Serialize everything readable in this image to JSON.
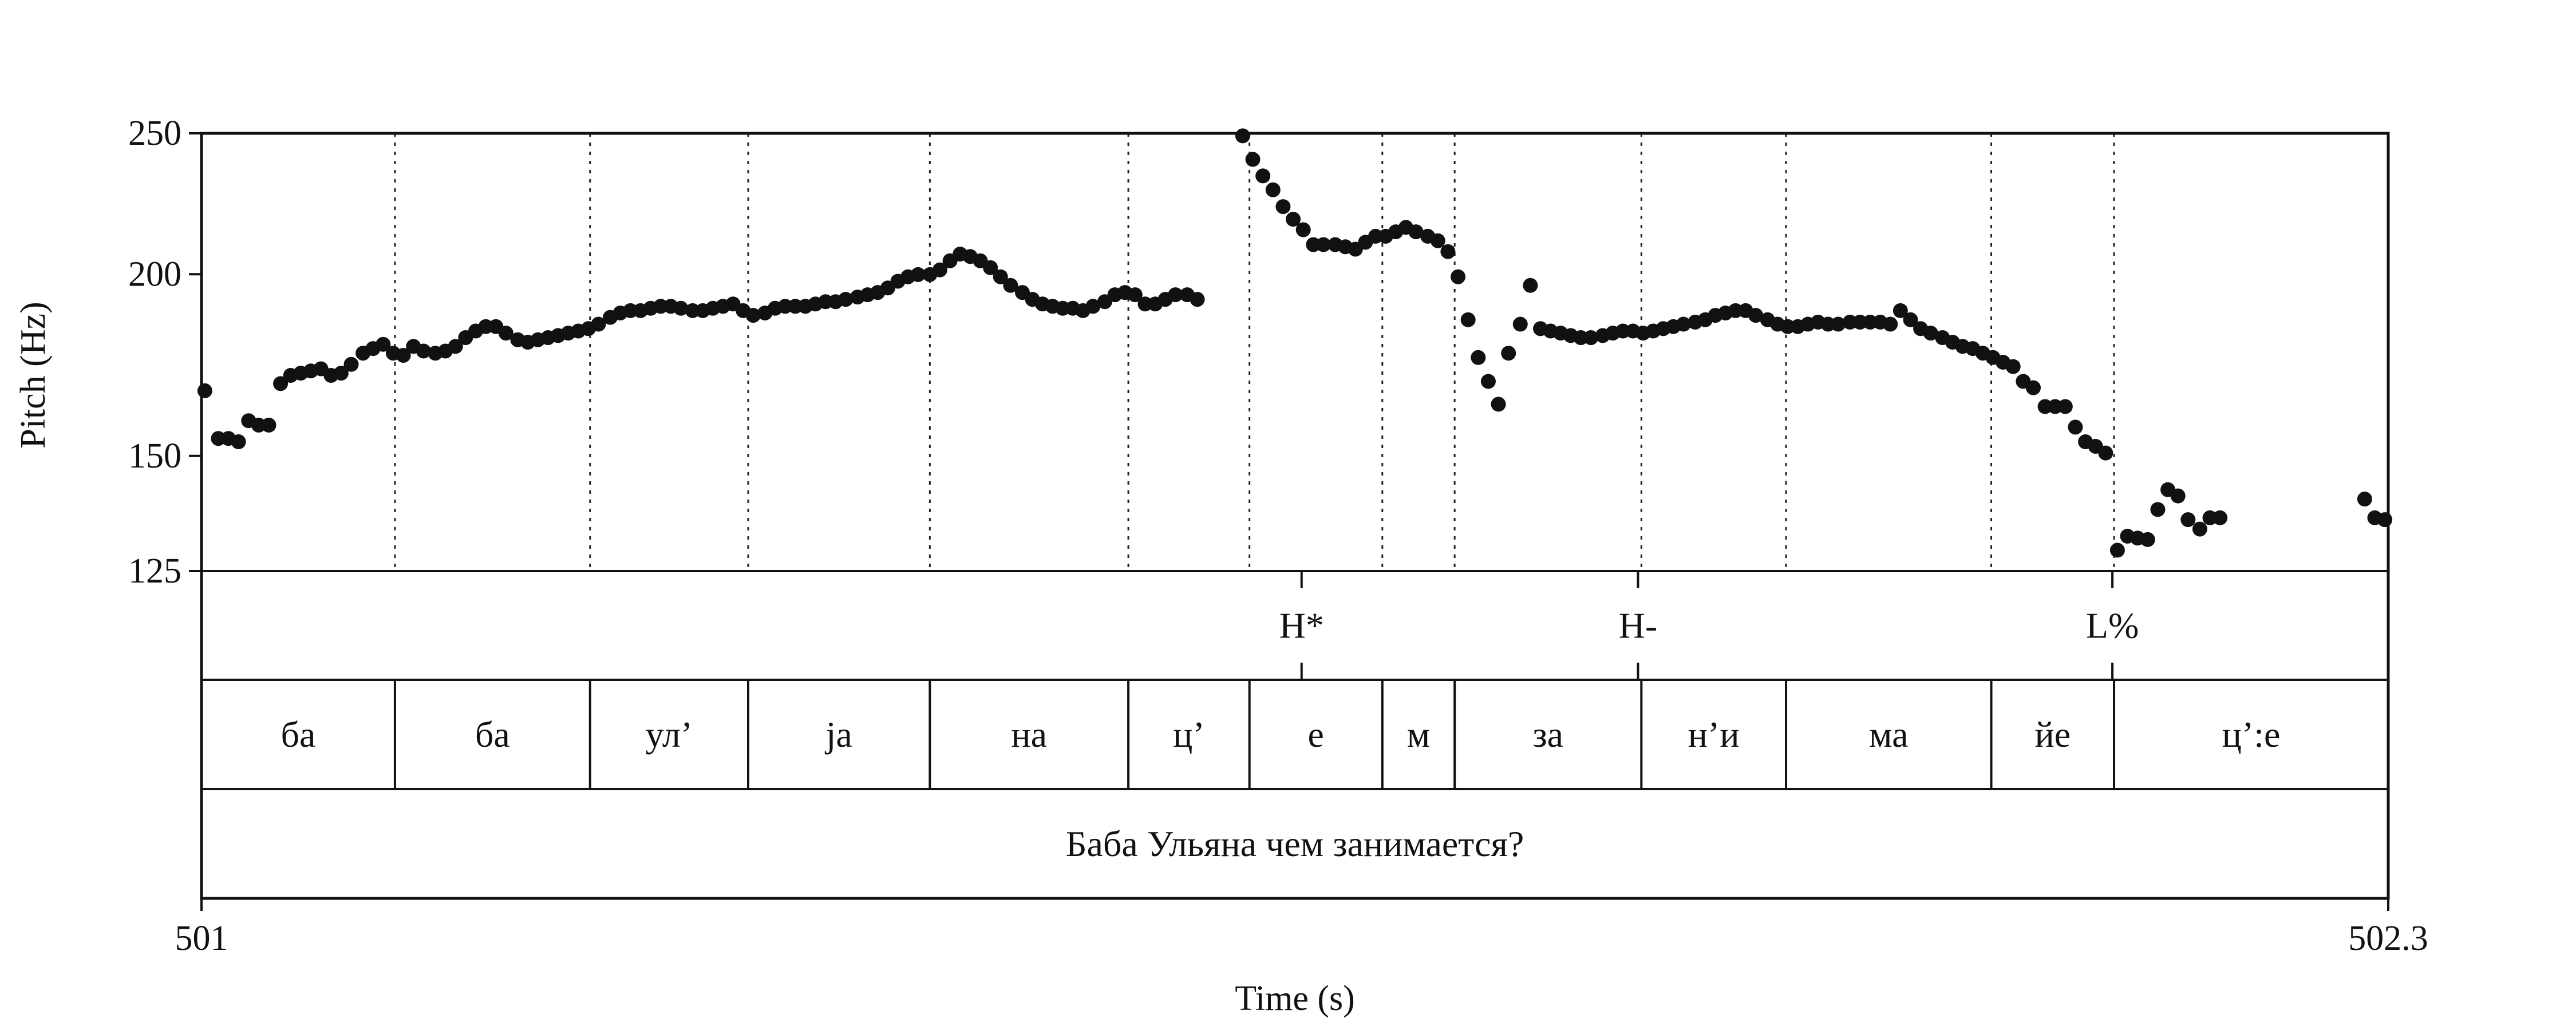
{
  "chart_data": {
    "type": "scatter",
    "xlabel": "Time (s)",
    "ylabel": "Pitch (Hz)",
    "xlim": [
      501,
      502.3
    ],
    "ylim": [
      125,
      250
    ],
    "y_scale": "log",
    "x_tick_labels": [
      "501",
      "502.3"
    ],
    "y_ticks": [
      250,
      200,
      150,
      125
    ],
    "y_tick_labels": [
      "250",
      "200",
      "150",
      "125"
    ],
    "pitch_points": [
      [
        501.002,
        166.3
      ],
      [
        501.01,
        154.2
      ],
      [
        501.016,
        154.2
      ],
      [
        501.022,
        153.4
      ],
      [
        501.028,
        158.6
      ],
      [
        501.034,
        157.5
      ],
      [
        501.04,
        157.5
      ],
      [
        501.047,
        168.2
      ],
      [
        501.053,
        170.4
      ],
      [
        501.059,
        171.0
      ],
      [
        501.065,
        171.6
      ],
      [
        501.071,
        172.2
      ],
      [
        501.077,
        170.4
      ],
      [
        501.083,
        171.0
      ],
      [
        501.089,
        173.4
      ],
      [
        501.096,
        176.5
      ],
      [
        501.102,
        177.8
      ],
      [
        501.108,
        179.0
      ],
      [
        501.114,
        176.5
      ],
      [
        501.12,
        175.9
      ],
      [
        501.126,
        178.4
      ],
      [
        501.132,
        177.1
      ],
      [
        501.139,
        176.5
      ],
      [
        501.145,
        177.1
      ],
      [
        501.151,
        178.4
      ],
      [
        501.157,
        180.9
      ],
      [
        501.163,
        182.8
      ],
      [
        501.169,
        184.1
      ],
      [
        501.175,
        184.1
      ],
      [
        501.181,
        182.2
      ],
      [
        501.188,
        180.3
      ],
      [
        501.194,
        179.6
      ],
      [
        501.2,
        180.3
      ],
      [
        501.206,
        180.9
      ],
      [
        501.212,
        181.5
      ],
      [
        501.218,
        182.2
      ],
      [
        501.224,
        182.8
      ],
      [
        501.23,
        183.5
      ],
      [
        501.236,
        184.8
      ],
      [
        501.243,
        186.8
      ],
      [
        501.249,
        188.1
      ],
      [
        501.255,
        188.8
      ],
      [
        501.261,
        188.8
      ],
      [
        501.267,
        189.5
      ],
      [
        501.273,
        190.1
      ],
      [
        501.279,
        190.1
      ],
      [
        501.285,
        189.5
      ],
      [
        501.292,
        188.8
      ],
      [
        501.298,
        188.8
      ],
      [
        501.304,
        189.5
      ],
      [
        501.31,
        190.1
      ],
      [
        501.316,
        190.8
      ],
      [
        501.322,
        188.8
      ],
      [
        501.328,
        187.4
      ],
      [
        501.335,
        188.1
      ],
      [
        501.341,
        189.5
      ],
      [
        501.347,
        190.1
      ],
      [
        501.353,
        190.1
      ],
      [
        501.359,
        190.1
      ],
      [
        501.365,
        190.8
      ],
      [
        501.371,
        191.5
      ],
      [
        501.377,
        191.5
      ],
      [
        501.383,
        192.2
      ],
      [
        501.39,
        192.9
      ],
      [
        501.396,
        193.6
      ],
      [
        501.402,
        194.3
      ],
      [
        501.408,
        195.7
      ],
      [
        501.414,
        197.8
      ],
      [
        501.42,
        199.2
      ],
      [
        501.426,
        199.9
      ],
      [
        501.433,
        199.9
      ],
      [
        501.439,
        201.4
      ],
      [
        501.445,
        204.3
      ],
      [
        501.451,
        206.5
      ],
      [
        501.457,
        205.7
      ],
      [
        501.463,
        204.3
      ],
      [
        501.469,
        202.1
      ],
      [
        501.475,
        199.2
      ],
      [
        501.481,
        196.5
      ],
      [
        501.488,
        194.3
      ],
      [
        501.494,
        192.2
      ],
      [
        501.5,
        190.8
      ],
      [
        501.506,
        190.1
      ],
      [
        501.512,
        189.5
      ],
      [
        501.518,
        189.5
      ],
      [
        501.524,
        188.8
      ],
      [
        501.53,
        190.1
      ],
      [
        501.537,
        191.5
      ],
      [
        501.543,
        193.6
      ],
      [
        501.549,
        194.3
      ],
      [
        501.555,
        193.6
      ],
      [
        501.561,
        190.8
      ],
      [
        501.567,
        190.8
      ],
      [
        501.573,
        192.2
      ],
      [
        501.579,
        193.6
      ],
      [
        501.586,
        193.6
      ],
      [
        501.592,
        192.2
      ],
      [
        501.619,
        249.0
      ],
      [
        501.625,
        239.9
      ],
      [
        501.631,
        233.7
      ],
      [
        501.637,
        228.6
      ],
      [
        501.643,
        222.6
      ],
      [
        501.649,
        218.2
      ],
      [
        501.655,
        214.6
      ],
      [
        501.661,
        209.6
      ],
      [
        501.667,
        209.6
      ],
      [
        501.674,
        209.6
      ],
      [
        501.68,
        208.9
      ],
      [
        501.686,
        208.1
      ],
      [
        501.692,
        210.4
      ],
      [
        501.698,
        212.4
      ],
      [
        501.704,
        212.4
      ],
      [
        501.71,
        213.9
      ],
      [
        501.716,
        215.4
      ],
      [
        501.722,
        213.9
      ],
      [
        501.729,
        212.4
      ],
      [
        501.735,
        210.9
      ],
      [
        501.741,
        207.3
      ],
      [
        501.747,
        199.2
      ],
      [
        501.753,
        186.1
      ],
      [
        501.759,
        175.3
      ],
      [
        501.765,
        168.8
      ],
      [
        501.771,
        162.8
      ],
      [
        501.777,
        176.5
      ],
      [
        501.784,
        184.8
      ],
      [
        501.79,
        196.5
      ],
      [
        501.796,
        183.5
      ],
      [
        501.802,
        182.8
      ],
      [
        501.808,
        182.2
      ],
      [
        501.814,
        181.5
      ],
      [
        501.82,
        180.9
      ],
      [
        501.826,
        180.9
      ],
      [
        501.833,
        181.5
      ],
      [
        501.839,
        182.2
      ],
      [
        501.845,
        182.8
      ],
      [
        501.851,
        182.8
      ],
      [
        501.857,
        182.2
      ],
      [
        501.863,
        182.8
      ],
      [
        501.869,
        183.5
      ],
      [
        501.875,
        184.1
      ],
      [
        501.881,
        184.8
      ],
      [
        501.888,
        185.4
      ],
      [
        501.894,
        186.1
      ],
      [
        501.9,
        187.4
      ],
      [
        501.906,
        188.1
      ],
      [
        501.912,
        188.8
      ],
      [
        501.918,
        188.8
      ],
      [
        501.924,
        187.4
      ],
      [
        501.931,
        186.1
      ],
      [
        501.937,
        184.8
      ],
      [
        501.943,
        184.1
      ],
      [
        501.949,
        184.1
      ],
      [
        501.955,
        184.8
      ],
      [
        501.961,
        185.4
      ],
      [
        501.967,
        184.8
      ],
      [
        501.973,
        184.8
      ],
      [
        501.98,
        185.4
      ],
      [
        501.986,
        185.4
      ],
      [
        501.992,
        185.4
      ],
      [
        501.998,
        185.4
      ],
      [
        502.004,
        184.8
      ],
      [
        502.01,
        188.8
      ],
      [
        502.016,
        186.1
      ],
      [
        502.022,
        183.5
      ],
      [
        502.028,
        182.2
      ],
      [
        502.035,
        180.9
      ],
      [
        502.041,
        179.6
      ],
      [
        502.047,
        178.4
      ],
      [
        502.053,
        177.8
      ],
      [
        502.059,
        176.5
      ],
      [
        502.065,
        175.3
      ],
      [
        502.071,
        174.0
      ],
      [
        502.077,
        172.8
      ],
      [
        502.083,
        168.8
      ],
      [
        502.089,
        167.1
      ],
      [
        502.096,
        162.2
      ],
      [
        502.102,
        162.2
      ],
      [
        502.108,
        162.2
      ],
      [
        502.114,
        157.0
      ],
      [
        502.12,
        153.4
      ],
      [
        502.126,
        152.3
      ],
      [
        502.132,
        150.7
      ],
      [
        502.139,
        129.2
      ],
      [
        502.145,
        132.1
      ],
      [
        502.151,
        131.7
      ],
      [
        502.157,
        131.4
      ],
      [
        502.163,
        137.8
      ],
      [
        502.169,
        142.2
      ],
      [
        502.175,
        140.8
      ],
      [
        502.181,
        135.6
      ],
      [
        502.188,
        133.6
      ],
      [
        502.194,
        136.0
      ],
      [
        502.2,
        136.0
      ],
      [
        502.286,
        140.1
      ],
      [
        502.292,
        136.0
      ],
      [
        502.298,
        135.6
      ]
    ],
    "boundaries_s": [
      501.115,
      501.231,
      501.325,
      501.433,
      501.551,
      501.623,
      501.702,
      501.745,
      501.856,
      501.942,
      502.064,
      502.137
    ],
    "tones": [
      {
        "label": "H*",
        "time": 501.654
      },
      {
        "label": "H-",
        "time": 501.854
      },
      {
        "label": "L%",
        "time": 502.136
      }
    ],
    "syllables": [
      {
        "label": "ба",
        "start": 501.0,
        "end": 501.115
      },
      {
        "label": "ба",
        "start": 501.115,
        "end": 501.231
      },
      {
        "label": "ул’",
        "start": 501.231,
        "end": 501.325
      },
      {
        "label": "ja",
        "start": 501.325,
        "end": 501.433
      },
      {
        "label": "на",
        "start": 501.433,
        "end": 501.551
      },
      {
        "label": "ц’",
        "start": 501.551,
        "end": 501.623
      },
      {
        "label": "е",
        "start": 501.623,
        "end": 501.702
      },
      {
        "label": "м",
        "start": 501.702,
        "end": 501.745
      },
      {
        "label": "за",
        "start": 501.745,
        "end": 501.856
      },
      {
        "label": "н’и",
        "start": 501.856,
        "end": 501.942
      },
      {
        "label": "ма",
        "start": 501.942,
        "end": 502.064
      },
      {
        "label": "йе",
        "start": 502.064,
        "end": 502.137
      },
      {
        "label": "ц’:е",
        "start": 502.137,
        "end": 502.3
      }
    ],
    "sentence": "Баба Ульяна чем занимается?"
  }
}
